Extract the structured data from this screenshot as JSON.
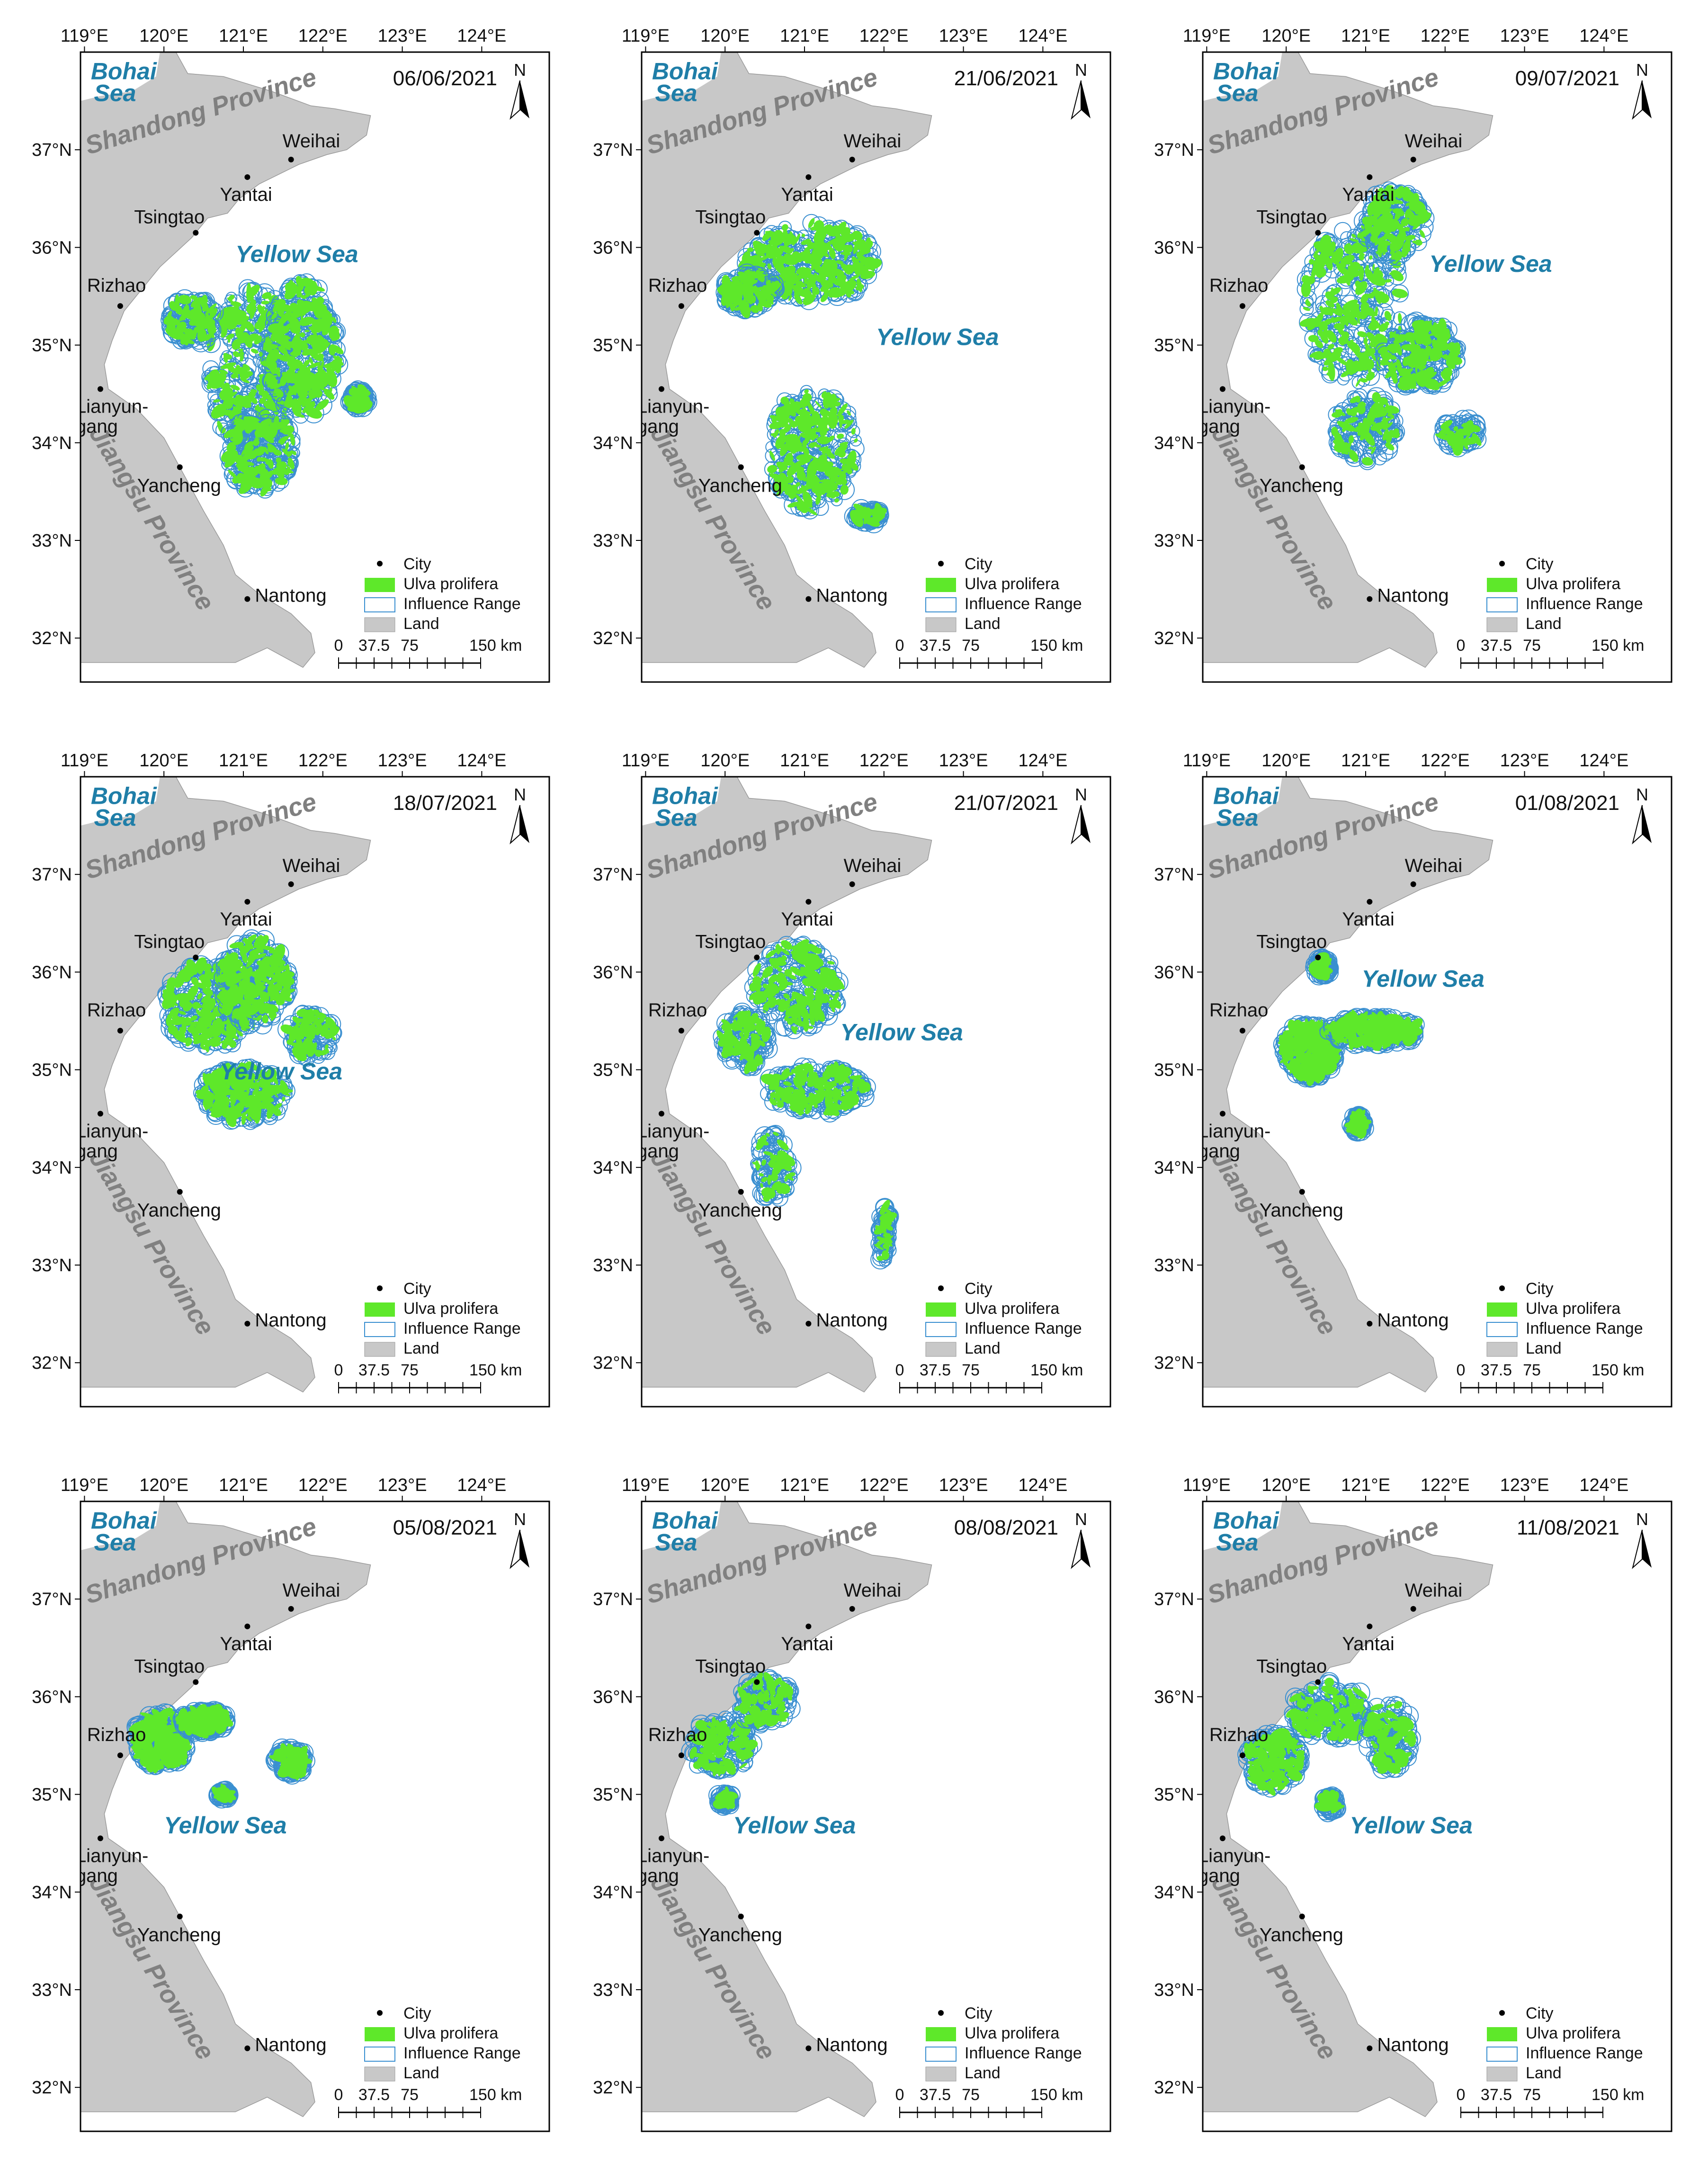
{
  "figure": {
    "lon_ticks": [
      "119°E",
      "120°E",
      "121°E",
      "122°E",
      "123°E",
      "124°E"
    ],
    "lat_ticks": [
      "37°N",
      "36°N",
      "35°N",
      "34°N",
      "33°N",
      "32°N"
    ],
    "labels": {
      "bohai_sea": [
        "Bohai",
        "Sea"
      ],
      "shandong": "Shandong Province",
      "jiangsu": "Jiangsu Province",
      "yellow_sea": "Yellow Sea",
      "north": "N"
    },
    "cities": [
      {
        "name": "Weihai",
        "lon": 121.6,
        "lat": 36.9
      },
      {
        "name": "Yantai",
        "lon": 121.05,
        "lat": 36.72
      },
      {
        "name": "Tsingtao",
        "lon": 120.4,
        "lat": 36.15
      },
      {
        "name": "Rizhao",
        "lon": 119.45,
        "lat": 35.4
      },
      {
        "name": "Lianyungang",
        "lon": 119.2,
        "lat": 34.55
      },
      {
        "name": "Yancheng",
        "lon": 120.2,
        "lat": 33.75
      },
      {
        "name": "Nantong",
        "lon": 121.05,
        "lat": 32.4
      }
    ],
    "lianyungang_lines": [
      "Lianyun-",
      "gang"
    ],
    "legend": {
      "city": "City",
      "ulva": "Ulva prolifera",
      "influence": "Influence Range",
      "land": "Land"
    },
    "scale": {
      "labels": [
        "0",
        "37.5",
        "75",
        "150 km"
      ],
      "km": [
        0,
        37.5,
        75,
        150
      ]
    },
    "colors": {
      "ulva": "#5ee82a",
      "influence": "#3a8fd0",
      "land": "#c8c8c8",
      "sea_label": "#1f7ea8",
      "region_label": "#808080"
    }
  },
  "panels": [
    {
      "date": "06/06/2021",
      "yellow_sea_at": {
        "lon": 120.9,
        "lat": 35.85
      },
      "blooms": [
        {
          "lon": 121.1,
          "lat": 34.75,
          "rx": 0.55,
          "ry": 0.85,
          "density": 0.85
        },
        {
          "lon": 121.75,
          "lat": 34.95,
          "rx": 0.45,
          "ry": 0.7,
          "density": 0.85
        },
        {
          "lon": 120.35,
          "lat": 35.25,
          "rx": 0.3,
          "ry": 0.25,
          "density": 0.35
        },
        {
          "lon": 121.2,
          "lat": 33.9,
          "rx": 0.45,
          "ry": 0.4,
          "density": 0.6
        },
        {
          "lon": 122.45,
          "lat": 34.45,
          "rx": 0.12,
          "ry": 0.1,
          "density": 0.15
        }
      ]
    },
    {
      "date": "21/06/2021",
      "yellow_sea_at": {
        "lon": 121.9,
        "lat": 35.0
      },
      "blooms": [
        {
          "lon": 121.1,
          "lat": 35.85,
          "rx": 0.85,
          "ry": 0.4,
          "density": 0.85
        },
        {
          "lon": 120.3,
          "lat": 35.55,
          "rx": 0.35,
          "ry": 0.2,
          "density": 0.35
        },
        {
          "lon": 121.1,
          "lat": 33.95,
          "rx": 0.55,
          "ry": 0.65,
          "density": 0.85
        },
        {
          "lon": 121.8,
          "lat": 33.25,
          "rx": 0.18,
          "ry": 0.08,
          "density": 0.15
        }
      ]
    },
    {
      "date": "09/07/2021",
      "yellow_sea_at": {
        "lon": 121.8,
        "lat": 35.75
      },
      "blooms": [
        {
          "lon": 120.85,
          "lat": 35.4,
          "rx": 0.65,
          "ry": 0.8,
          "density": 0.8
        },
        {
          "lon": 121.35,
          "lat": 36.25,
          "rx": 0.4,
          "ry": 0.35,
          "density": 0.5
        },
        {
          "lon": 121.7,
          "lat": 34.9,
          "rx": 0.5,
          "ry": 0.35,
          "density": 0.55
        },
        {
          "lon": 121.0,
          "lat": 34.15,
          "rx": 0.4,
          "ry": 0.35,
          "density": 0.4
        },
        {
          "lon": 122.2,
          "lat": 34.1,
          "rx": 0.25,
          "ry": 0.15,
          "density": 0.15
        }
      ]
    },
    {
      "date": "18/07/2021",
      "yellow_sea_at": {
        "lon": 120.7,
        "lat": 34.9
      },
      "blooms": [
        {
          "lon": 120.6,
          "lat": 35.65,
          "rx": 0.6,
          "ry": 0.45,
          "density": 0.75
        },
        {
          "lon": 121.15,
          "lat": 35.9,
          "rx": 0.45,
          "ry": 0.45,
          "density": 0.75
        },
        {
          "lon": 121.0,
          "lat": 34.75,
          "rx": 0.55,
          "ry": 0.3,
          "density": 0.65
        },
        {
          "lon": 121.85,
          "lat": 35.35,
          "rx": 0.3,
          "ry": 0.25,
          "density": 0.25
        }
      ]
    },
    {
      "date": "21/07/2021",
      "yellow_sea_at": {
        "lon": 121.45,
        "lat": 35.3
      },
      "blooms": [
        {
          "lon": 120.9,
          "lat": 35.85,
          "rx": 0.55,
          "ry": 0.45,
          "density": 0.65
        },
        {
          "lon": 121.15,
          "lat": 34.8,
          "rx": 0.65,
          "ry": 0.25,
          "density": 0.55
        },
        {
          "lon": 120.25,
          "lat": 35.3,
          "rx": 0.3,
          "ry": 0.3,
          "density": 0.35
        },
        {
          "lon": 120.6,
          "lat": 34.0,
          "rx": 0.25,
          "ry": 0.35,
          "density": 0.2
        },
        {
          "lon": 122.0,
          "lat": 33.3,
          "rx": 0.08,
          "ry": 0.3,
          "density": 0.12
        }
      ]
    },
    {
      "date": "01/08/2021",
      "yellow_sea_at": {
        "lon": 120.95,
        "lat": 35.85
      },
      "blooms": [
        {
          "lon": 120.3,
          "lat": 35.2,
          "rx": 0.35,
          "ry": 0.3,
          "density": 0.8
        },
        {
          "lon": 121.1,
          "lat": 35.4,
          "rx": 0.6,
          "ry": 0.15,
          "density": 0.75
        },
        {
          "lon": 120.45,
          "lat": 36.05,
          "rx": 0.1,
          "ry": 0.1,
          "density": 0.25
        },
        {
          "lon": 120.9,
          "lat": 34.45,
          "rx": 0.1,
          "ry": 0.1,
          "density": 0.1
        }
      ]
    },
    {
      "date": "05/08/2021",
      "yellow_sea_at": {
        "lon": 120.0,
        "lat": 34.6
      },
      "blooms": [
        {
          "lon": 119.95,
          "lat": 35.55,
          "rx": 0.35,
          "ry": 0.3,
          "density": 0.8
        },
        {
          "lon": 120.5,
          "lat": 35.75,
          "rx": 0.3,
          "ry": 0.12,
          "density": 0.7
        },
        {
          "lon": 121.6,
          "lat": 35.35,
          "rx": 0.2,
          "ry": 0.15,
          "density": 0.3
        },
        {
          "lon": 120.75,
          "lat": 35.0,
          "rx": 0.08,
          "ry": 0.05,
          "density": 0.1
        }
      ]
    },
    {
      "date": "08/08/2021",
      "yellow_sea_at": {
        "lon": 120.1,
        "lat": 34.6
      },
      "blooms": [
        {
          "lon": 119.95,
          "lat": 35.5,
          "rx": 0.4,
          "ry": 0.3,
          "density": 0.4
        },
        {
          "lon": 120.5,
          "lat": 35.95,
          "rx": 0.35,
          "ry": 0.25,
          "density": 0.35
        },
        {
          "lon": 120.0,
          "lat": 34.95,
          "rx": 0.1,
          "ry": 0.08,
          "density": 0.1
        }
      ]
    },
    {
      "date": "11/08/2021",
      "yellow_sea_at": {
        "lon": 120.8,
        "lat": 34.6
      },
      "blooms": [
        {
          "lon": 119.85,
          "lat": 35.35,
          "rx": 0.35,
          "ry": 0.3,
          "density": 0.5
        },
        {
          "lon": 120.55,
          "lat": 35.85,
          "rx": 0.5,
          "ry": 0.3,
          "density": 0.5
        },
        {
          "lon": 121.3,
          "lat": 35.6,
          "rx": 0.3,
          "ry": 0.35,
          "density": 0.35
        },
        {
          "lon": 120.55,
          "lat": 34.9,
          "rx": 0.1,
          "ry": 0.1,
          "density": 0.1
        }
      ]
    }
  ]
}
